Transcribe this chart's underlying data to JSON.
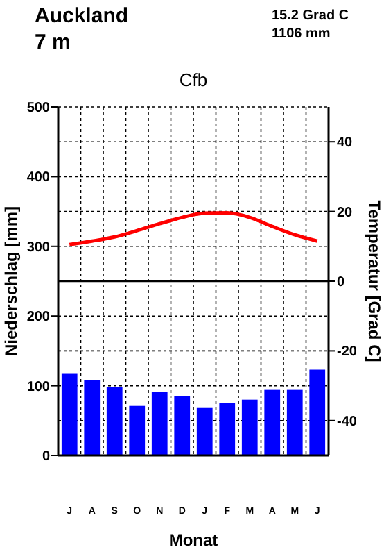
{
  "chart_data": {
    "type": "bar",
    "title": "Cfb",
    "xlabel": "Monat",
    "ylabel": "Niederschlag [mm]",
    "y2label": "Temperatur [Grad C]",
    "annotations": [
      "Auckland",
      "7 m",
      "15.2 Grad C",
      "1106 mm"
    ],
    "categories": [
      "J",
      "A",
      "S",
      "O",
      "N",
      "D",
      "J",
      "F",
      "M",
      "A",
      "M",
      "J"
    ],
    "series": [
      {
        "color": "#0000ff",
        "values": [
          117,
          108,
          98,
          71,
          91,
          85,
          69,
          75,
          80,
          94,
          94,
          123
        ]
      },
      {
        "type": "line",
        "axis": "y2",
        "color": "#ff0000",
        "values": [
          10.5,
          11.5,
          12.7,
          14.5,
          16.5,
          18.3,
          19.5,
          19.6,
          18.3,
          15.7,
          13.3,
          11.5
        ]
      }
    ],
    "ylim": [
      0,
      500
    ],
    "yticks": [
      0,
      100,
      200,
      300,
      400,
      500
    ],
    "y2lim": [
      -50,
      50
    ],
    "y2ticks": [
      -40,
      -20,
      0,
      20,
      40
    ],
    "ref_lines": [
      {
        "axis": "y2",
        "value": 0,
        "color": "#000000",
        "line_style": "solid"
      }
    ],
    "grid": true
  }
}
